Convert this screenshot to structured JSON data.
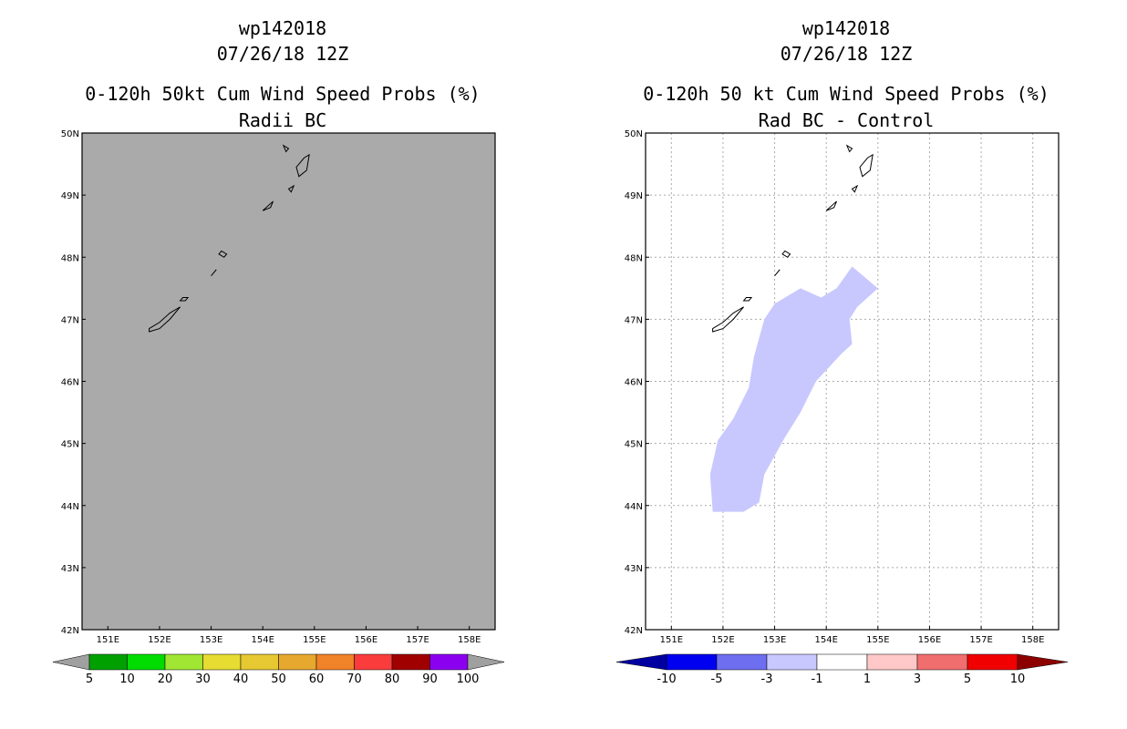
{
  "chart_data": [
    {
      "type": "heatmap",
      "title": {
        "storm": "wp142018",
        "datetime": "07/26/18 12Z",
        "product": "0-120h 50kt Cum Wind Speed Probs (%)",
        "subtitle": "Radii BC"
      },
      "xlabel": "",
      "ylabel": "",
      "xlim": [
        150.5,
        158.5
      ],
      "ylim": [
        42,
        50
      ],
      "x_ticks": [
        151,
        152,
        153,
        154,
        155,
        156,
        157,
        158
      ],
      "x_tick_labels": [
        "151E",
        "152E",
        "153E",
        "154E",
        "155E",
        "156E",
        "157E",
        "158E"
      ],
      "y_ticks": [
        42,
        43,
        44,
        45,
        46,
        47,
        48,
        49,
        50
      ],
      "y_tick_labels": [
        "42N",
        "43N",
        "44N",
        "45N",
        "46N",
        "47N",
        "48N",
        "49N",
        "50N"
      ],
      "grid": false,
      "field": "entire domain below 5% (gray)",
      "background_color": "#aaaaaa",
      "colorbar": {
        "labels": [
          "5",
          "10",
          "20",
          "30",
          "40",
          "50",
          "60",
          "70",
          "80",
          "90",
          "100"
        ],
        "colors": [
          "#a0a0a0",
          "#00a000",
          "#00dc00",
          "#a0e632",
          "#e6dc32",
          "#e6c832",
          "#e6a82e",
          "#f08228",
          "#fa3c3c",
          "#a00000",
          "#8c00f0",
          "#a0a0a0"
        ]
      }
    },
    {
      "type": "heatmap",
      "title": {
        "storm": "wp142018",
        "datetime": "07/26/18 12Z",
        "product": "0-120h 50 kt Cum Wind Speed Probs (%)",
        "subtitle": "Rad BC - Control"
      },
      "xlabel": "",
      "ylabel": "",
      "xlim": [
        150.5,
        158.5
      ],
      "ylim": [
        42,
        50
      ],
      "x_ticks": [
        151,
        152,
        153,
        154,
        155,
        156,
        157,
        158
      ],
      "x_tick_labels": [
        "151E",
        "152E",
        "153E",
        "154E",
        "155E",
        "156E",
        "157E",
        "158E"
      ],
      "y_ticks": [
        42,
        43,
        44,
        45,
        46,
        47,
        48,
        49,
        50
      ],
      "y_tick_labels": [
        "42N",
        "43N",
        "44N",
        "45N",
        "46N",
        "47N",
        "48N",
        "49N",
        "50N"
      ],
      "grid": true,
      "field": "difference between -3 and -1 percent in a band from 44N to 48N",
      "region_fill": "#c8c8ff",
      "region_outline_lonlat": [
        [
          151.8,
          43.9
        ],
        [
          152.4,
          43.9
        ],
        [
          152.7,
          44.05
        ],
        [
          152.8,
          44.5
        ],
        [
          153.2,
          45.1
        ],
        [
          153.5,
          45.5
        ],
        [
          153.8,
          46.0
        ],
        [
          154.3,
          46.45
        ],
        [
          154.5,
          46.6
        ],
        [
          154.45,
          47.0
        ],
        [
          154.6,
          47.2
        ],
        [
          155.0,
          47.5
        ],
        [
          154.5,
          47.85
        ],
        [
          154.2,
          47.5
        ],
        [
          153.9,
          47.35
        ],
        [
          153.5,
          47.5
        ],
        [
          153.0,
          47.25
        ],
        [
          152.8,
          47.0
        ],
        [
          152.6,
          46.4
        ],
        [
          152.5,
          45.9
        ],
        [
          152.2,
          45.4
        ],
        [
          151.9,
          45.05
        ],
        [
          151.75,
          44.5
        ]
      ],
      "colorbar": {
        "labels": [
          "-10",
          "-5",
          "-3",
          "-1",
          "1",
          "3",
          "5",
          "10"
        ],
        "colors": [
          "#0000a0",
          "#0000f0",
          "#6e6ef0",
          "#c8c8ff",
          "#ffffff",
          "#ffc8c8",
          "#f06e6e",
          "#f00000",
          "#8c0000"
        ]
      }
    }
  ],
  "coastline_islands": [
    [
      [
        151.8,
        46.8
      ],
      [
        152.0,
        46.85
      ],
      [
        152.2,
        47.0
      ],
      [
        152.4,
        47.2
      ],
      [
        152.2,
        47.1
      ],
      [
        152.0,
        46.95
      ],
      [
        151.8,
        46.85
      ]
    ],
    [
      [
        152.45,
        47.35
      ],
      [
        152.55,
        47.35
      ],
      [
        152.5,
        47.3
      ],
      [
        152.4,
        47.3
      ]
    ],
    [
      [
        153.0,
        47.7
      ],
      [
        153.1,
        47.8
      ],
      [
        153.05,
        47.75
      ]
    ],
    [
      [
        153.2,
        48.1
      ],
      [
        153.3,
        48.05
      ],
      [
        153.25,
        48.0
      ],
      [
        153.15,
        48.05
      ]
    ],
    [
      [
        154.0,
        48.75
      ],
      [
        154.2,
        48.9
      ],
      [
        154.15,
        48.8
      ]
    ],
    [
      [
        154.5,
        49.1
      ],
      [
        154.6,
        49.15
      ],
      [
        154.55,
        49.05
      ]
    ],
    [
      [
        154.7,
        49.3
      ],
      [
        154.85,
        49.4
      ],
      [
        154.9,
        49.65
      ],
      [
        154.8,
        49.6
      ],
      [
        154.65,
        49.45
      ]
    ],
    [
      [
        154.4,
        49.8
      ],
      [
        154.5,
        49.75
      ],
      [
        154.45,
        49.7
      ]
    ]
  ]
}
